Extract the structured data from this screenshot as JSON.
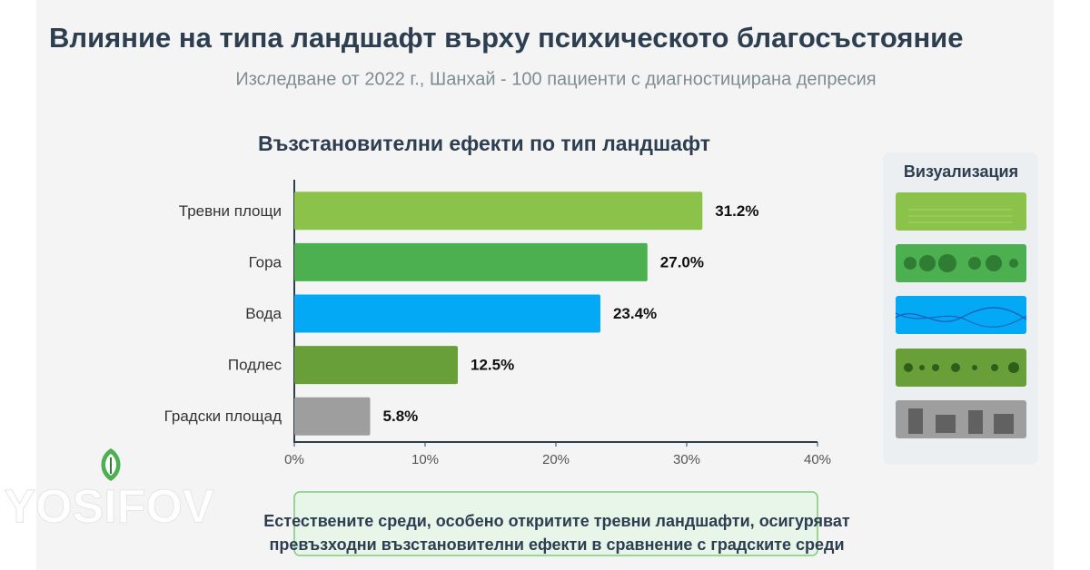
{
  "title": "Влияние на типа ландшафт върху психическото благосъстояние",
  "subtitle": "Изследване от 2022 г., Шанхай - 100 пациенти с диагностицирана депресия",
  "chart_data": {
    "type": "bar",
    "orientation": "horizontal",
    "title": "Възстановителни ефекти по тип ландшафт",
    "categories": [
      "Тревни площи",
      "Гора",
      "Вода",
      "Подлес",
      "Градски площад"
    ],
    "values": [
      31.2,
      27.0,
      23.4,
      12.5,
      5.8
    ],
    "value_labels": [
      "31.2%",
      "27.0%",
      "23.4%",
      "12.5%",
      "5.8%"
    ],
    "colors": [
      "#8bc34a",
      "#4caf50",
      "#03a9f4",
      "#689f38",
      "#9e9e9e"
    ],
    "xlim": [
      0,
      40
    ],
    "xticks": [
      {
        "value": 0,
        "label": "0%"
      },
      {
        "value": 10,
        "label": "10%"
      },
      {
        "value": 20,
        "label": "20%"
      },
      {
        "value": 30,
        "label": "30%"
      },
      {
        "value": 40,
        "label": "40%"
      }
    ]
  },
  "legend_panel": {
    "title": "Визуализация"
  },
  "conclusion": [
    "Естествените среди, особено откритите тревни ландшафти, осигуряват",
    "превъзходни възстановителни ефекти в сравнение с градските среди"
  ],
  "watermark": "YOSIFOV"
}
